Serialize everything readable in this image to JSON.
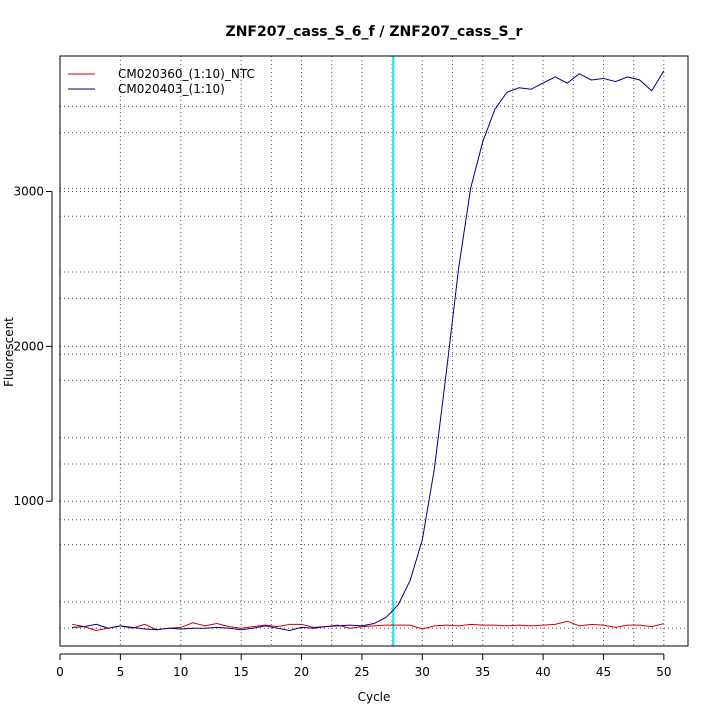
{
  "chart_data": {
    "type": "line",
    "title": "ZNF207_cass_S_6_f / ZNF207_cass_S_r",
    "xlabel": "Cycle",
    "ylabel": "Fluorescent",
    "xlim": [
      0,
      52
    ],
    "ylim": [
      65,
      3875
    ],
    "x_ticks": [
      0,
      5,
      10,
      15,
      20,
      25,
      30,
      35,
      40,
      45,
      50
    ],
    "y_ticks": [
      1000,
      2000,
      3000
    ],
    "x_gridlines": [
      17.5,
      22.5,
      27.5,
      32.5,
      37.5,
      42.5,
      47.5
    ],
    "y_gridlines": [
      180,
      350,
      720,
      880,
      1240,
      1410,
      1780,
      1950,
      2310,
      2480,
      2840,
      3020,
      3380,
      3550
    ],
    "threshold_cycle": 27.6,
    "legend_position": "top-left",
    "x": [
      1,
      2,
      3,
      4,
      5,
      6,
      7,
      8,
      9,
      10,
      11,
      12,
      13,
      14,
      15,
      16,
      17,
      18,
      19,
      20,
      21,
      22,
      23,
      24,
      25,
      26,
      27,
      28,
      29,
      30,
      31,
      32,
      33,
      34,
      35,
      36,
      37,
      38,
      39,
      40,
      41,
      42,
      43,
      44,
      45,
      46,
      47,
      48,
      49,
      50
    ],
    "series": [
      {
        "name": "CM020360_(1:10)_NTC",
        "color": "#cc0000",
        "values": [
          205,
          190,
          165,
          180,
          195,
          180,
          205,
          170,
          180,
          185,
          215,
          195,
          210,
          190,
          180,
          190,
          200,
          190,
          205,
          205,
          185,
          190,
          200,
          180,
          190,
          195,
          200,
          200,
          200,
          175,
          195,
          200,
          195,
          205,
          200,
          200,
          195,
          200,
          195,
          200,
          205,
          225,
          195,
          205,
          200,
          185,
          200,
          200,
          190,
          210
        ]
      },
      {
        "name": "CM020403_(1:10)",
        "color": "#000080",
        "values": [
          185,
          190,
          205,
          180,
          195,
          185,
          175,
          170,
          180,
          175,
          180,
          180,
          185,
          180,
          170,
          180,
          195,
          180,
          165,
          185,
          180,
          190,
          195,
          200,
          195,
          210,
          250,
          330,
          490,
          750,
          1210,
          1840,
          2500,
          3020,
          3320,
          3530,
          3640,
          3670,
          3660,
          3700,
          3740,
          3700,
          3760,
          3720,
          3730,
          3710,
          3740,
          3720,
          3650,
          3780
        ]
      }
    ]
  }
}
